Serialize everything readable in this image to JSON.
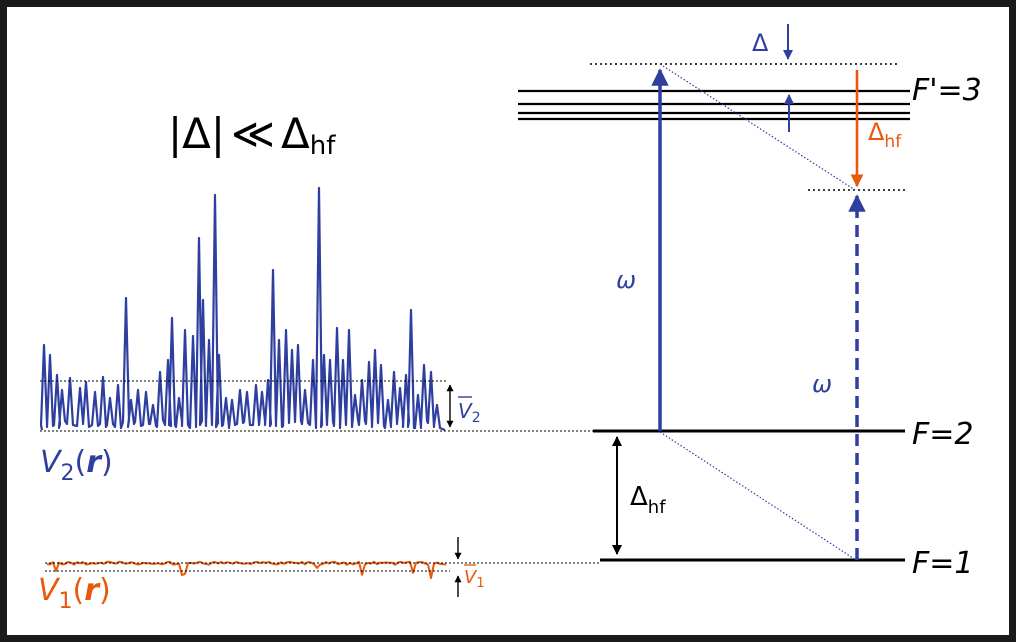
{
  "colors": {
    "blue": "#2E3FA0",
    "orange": "#E8590C",
    "black": "#000000",
    "frame": "#1a1a1a",
    "background": "#ffffff"
  },
  "condition": {
    "abs_bar_left": "|",
    "delta": "Δ",
    "abs_bar_right": "|",
    "much_less": "≪",
    "delta_hf": "Δ",
    "hf_sub": "hf"
  },
  "potentials": {
    "v2_letter": "V",
    "v2_index": "2",
    "v2_open": "(",
    "v2_arg": "r",
    "v2_close": ")",
    "v2_bar_letter": "V",
    "v2_bar_index": "2",
    "v1_letter": "V",
    "v1_index": "1",
    "v1_open": "(",
    "v1_arg": "r",
    "v1_close": ")",
    "v1_bar_letter": "V",
    "v1_bar_index": "1"
  },
  "levels": {
    "excited_label": "F'=3",
    "upper_ground_label": "F=2",
    "lower_ground_label": "F=1"
  },
  "annotations": {
    "detuning": "Δ",
    "hf_split_orange": "Δ",
    "hf_split_orange_sub": "hf",
    "hf_split_black": "Δ",
    "hf_split_black_sub": "hf",
    "omega_solid": "ω",
    "omega_dashed": "ω"
  }
}
